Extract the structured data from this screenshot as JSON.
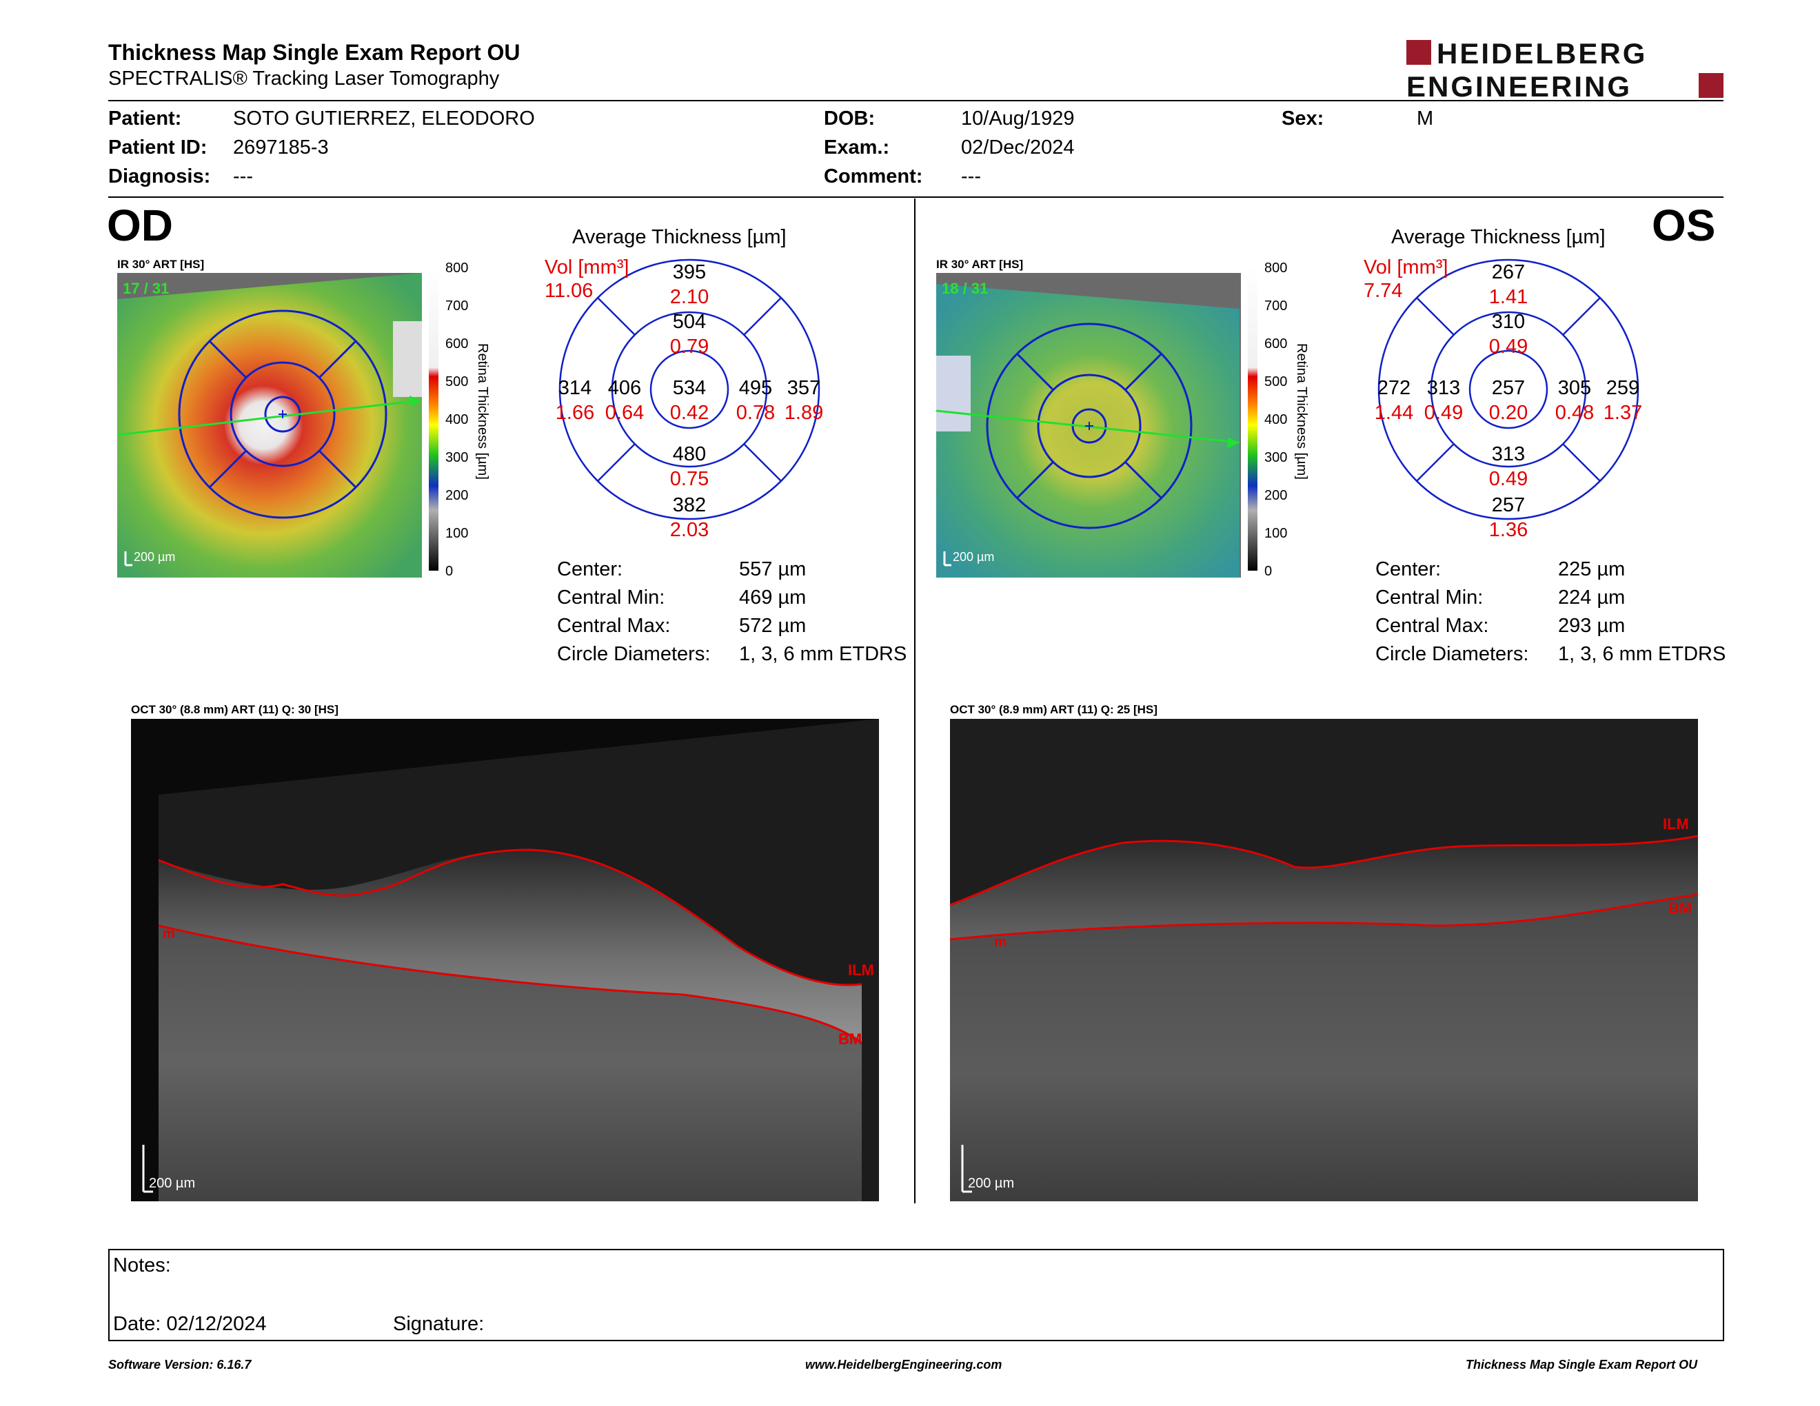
{
  "header": {
    "title": "Thickness Map Single Exam Report OU",
    "subtitle": "SPECTRALIS® Tracking Laser Tomography",
    "logo_line1": "HEIDELBERG",
    "logo_line2": "ENGINEERING"
  },
  "patient": {
    "patient_label": "Patient:",
    "patient_value": "SOTO GUTIERREZ, ELEODORO",
    "id_label": "Patient ID:",
    "id_value": "2697185-3",
    "diagnosis_label": "Diagnosis:",
    "diagnosis_value": "---",
    "dob_label": "DOB:",
    "dob_value": "10/Aug/1929",
    "exam_label": "Exam.:",
    "exam_value": "02/Dec/2024",
    "comment_label": "Comment:",
    "comment_value": "---",
    "sex_label": "Sex:",
    "sex_value": "M"
  },
  "scale": {
    "ticks": [
      "800",
      "700",
      "600",
      "500",
      "400",
      "300",
      "200",
      "100",
      "0"
    ],
    "axis_label": "Retina Thickness [µm]"
  },
  "od": {
    "eye": "OD",
    "ir_label": "IR 30° ART [HS]",
    "frame_count": "17 / 31",
    "scale_bar": "200 µm",
    "avg_title": "Average Thickness [µm]",
    "vol_label": "Vol [mm³]",
    "vol_value": "11.06",
    "grid": {
      "center_t": "534",
      "center_v": "0.42",
      "inner_sup_t": "504",
      "inner_sup_v": "0.79",
      "inner_inf_t": "480",
      "inner_inf_v": "0.75",
      "inner_left_t": "406",
      "inner_left_v": "0.64",
      "inner_right_t": "495",
      "inner_right_v": "0.78",
      "outer_sup_t": "395",
      "outer_sup_v": "2.10",
      "outer_inf_t": "382",
      "outer_inf_v": "2.03",
      "outer_left_t": "314",
      "outer_left_v": "1.66",
      "outer_right_t": "357",
      "outer_right_v": "1.89"
    },
    "metrics": {
      "center_label": "Center:",
      "center_value": "557 µm",
      "min_label": "Central Min:",
      "min_value": "469 µm",
      "max_label": "Central Max:",
      "max_value": "572 µm",
      "diam_label": "Circle Diameters:",
      "diam_value": "1, 3, 6 mm ETDRS"
    },
    "oct_label": "OCT 30° (8.8 mm) ART (11) Q: 30 [HS]",
    "oct_scale": "200 µm",
    "ilm": "ILM",
    "bm": "BM",
    "m": "m"
  },
  "os": {
    "eye": "OS",
    "ir_label": "IR 30° ART [HS]",
    "frame_count": "18 / 31",
    "scale_bar": "200 µm",
    "avg_title": "Average Thickness [µm]",
    "vol_label": "Vol [mm³]",
    "vol_value": "7.74",
    "grid": {
      "center_t": "257",
      "center_v": "0.20",
      "inner_sup_t": "310",
      "inner_sup_v": "0.49",
      "inner_inf_t": "313",
      "inner_inf_v": "0.49",
      "inner_left_t": "313",
      "inner_left_v": "0.49",
      "inner_right_t": "305",
      "inner_right_v": "0.48",
      "outer_sup_t": "267",
      "outer_sup_v": "1.41",
      "outer_inf_t": "257",
      "outer_inf_v": "1.36",
      "outer_left_t": "272",
      "outer_left_v": "1.44",
      "outer_right_t": "259",
      "outer_right_v": "1.37"
    },
    "metrics": {
      "center_label": "Center:",
      "center_value": "225 µm",
      "min_label": "Central Min:",
      "min_value": "224 µm",
      "max_label": "Central Max:",
      "max_value": "293 µm",
      "diam_label": "Circle Diameters:",
      "diam_value": "1, 3, 6 mm ETDRS"
    },
    "oct_label": "OCT 30° (8.9 mm) ART (11) Q: 25 [HS]",
    "oct_scale": "200 µm",
    "ilm": "ILM",
    "bm": "BM",
    "m": "m"
  },
  "notes": {
    "notes_label": "Notes:",
    "date_label": "Date: 02/12/2024",
    "signature_label": "Signature:"
  },
  "footer": {
    "software": "Software Version: 6.16.7",
    "website": "www.HeidelbergEngineering.com",
    "report_name": "Thickness Map Single Exam Report OU"
  },
  "colors": {
    "accent_red": "#9b1b2a",
    "value_red": "#e00000",
    "grid_blue": "#1020c8"
  }
}
